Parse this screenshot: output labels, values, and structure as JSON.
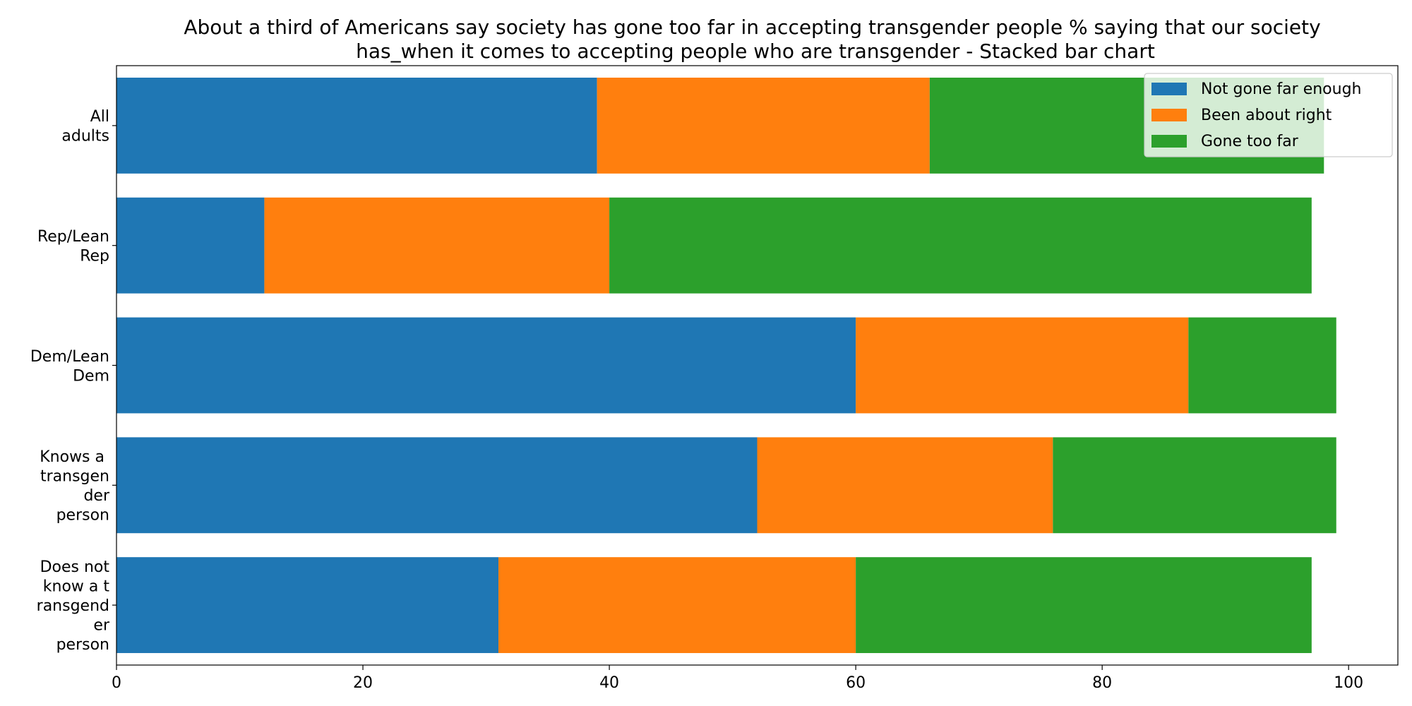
{
  "chart_data": {
    "type": "bar",
    "orientation": "horizontal",
    "stacked": true,
    "title": "About a third of Americans say society has gone too far in accepting transgender people % saying that our society has_when it comes to accepting people who are transgender  - Stacked bar chart",
    "title_lines": [
      "About a third of Americans say society has gone too far in accepting transgender people % saying that our society",
      "has_when it comes to accepting people who are transgender  - Stacked bar chart"
    ],
    "categories": [
      "All adults",
      "Rep/Lean Rep",
      "Dem/Lean Dem",
      "Knows a transgender person",
      "Does not know a transgender person"
    ],
    "category_label_lines": [
      [
        "All",
        "adults"
      ],
      [
        "Rep/Lean",
        "Rep"
      ],
      [
        "Dem/Lean",
        "Dem"
      ],
      [
        "Knows a ",
        "transgen",
        "der",
        "person"
      ],
      [
        "Does not",
        "know a t",
        "ransgend",
        "er",
        "person"
      ]
    ],
    "series": [
      {
        "name": "Not gone far enough",
        "color": "#1f77b4",
        "values": [
          39,
          12,
          60,
          52,
          31
        ]
      },
      {
        "name": "Been about right",
        "color": "#ff7f0e",
        "values": [
          27,
          28,
          27,
          24,
          29
        ]
      },
      {
        "name": "Gone too far",
        "color": "#2ca02c",
        "values": [
          32,
          57,
          12,
          23,
          37
        ]
      }
    ],
    "xlim": [
      0,
      104
    ],
    "xticks": [
      0,
      20,
      40,
      60,
      80,
      100
    ],
    "xlabel": "",
    "ylabel": "",
    "grid": false,
    "legend_position": "top-right"
  }
}
